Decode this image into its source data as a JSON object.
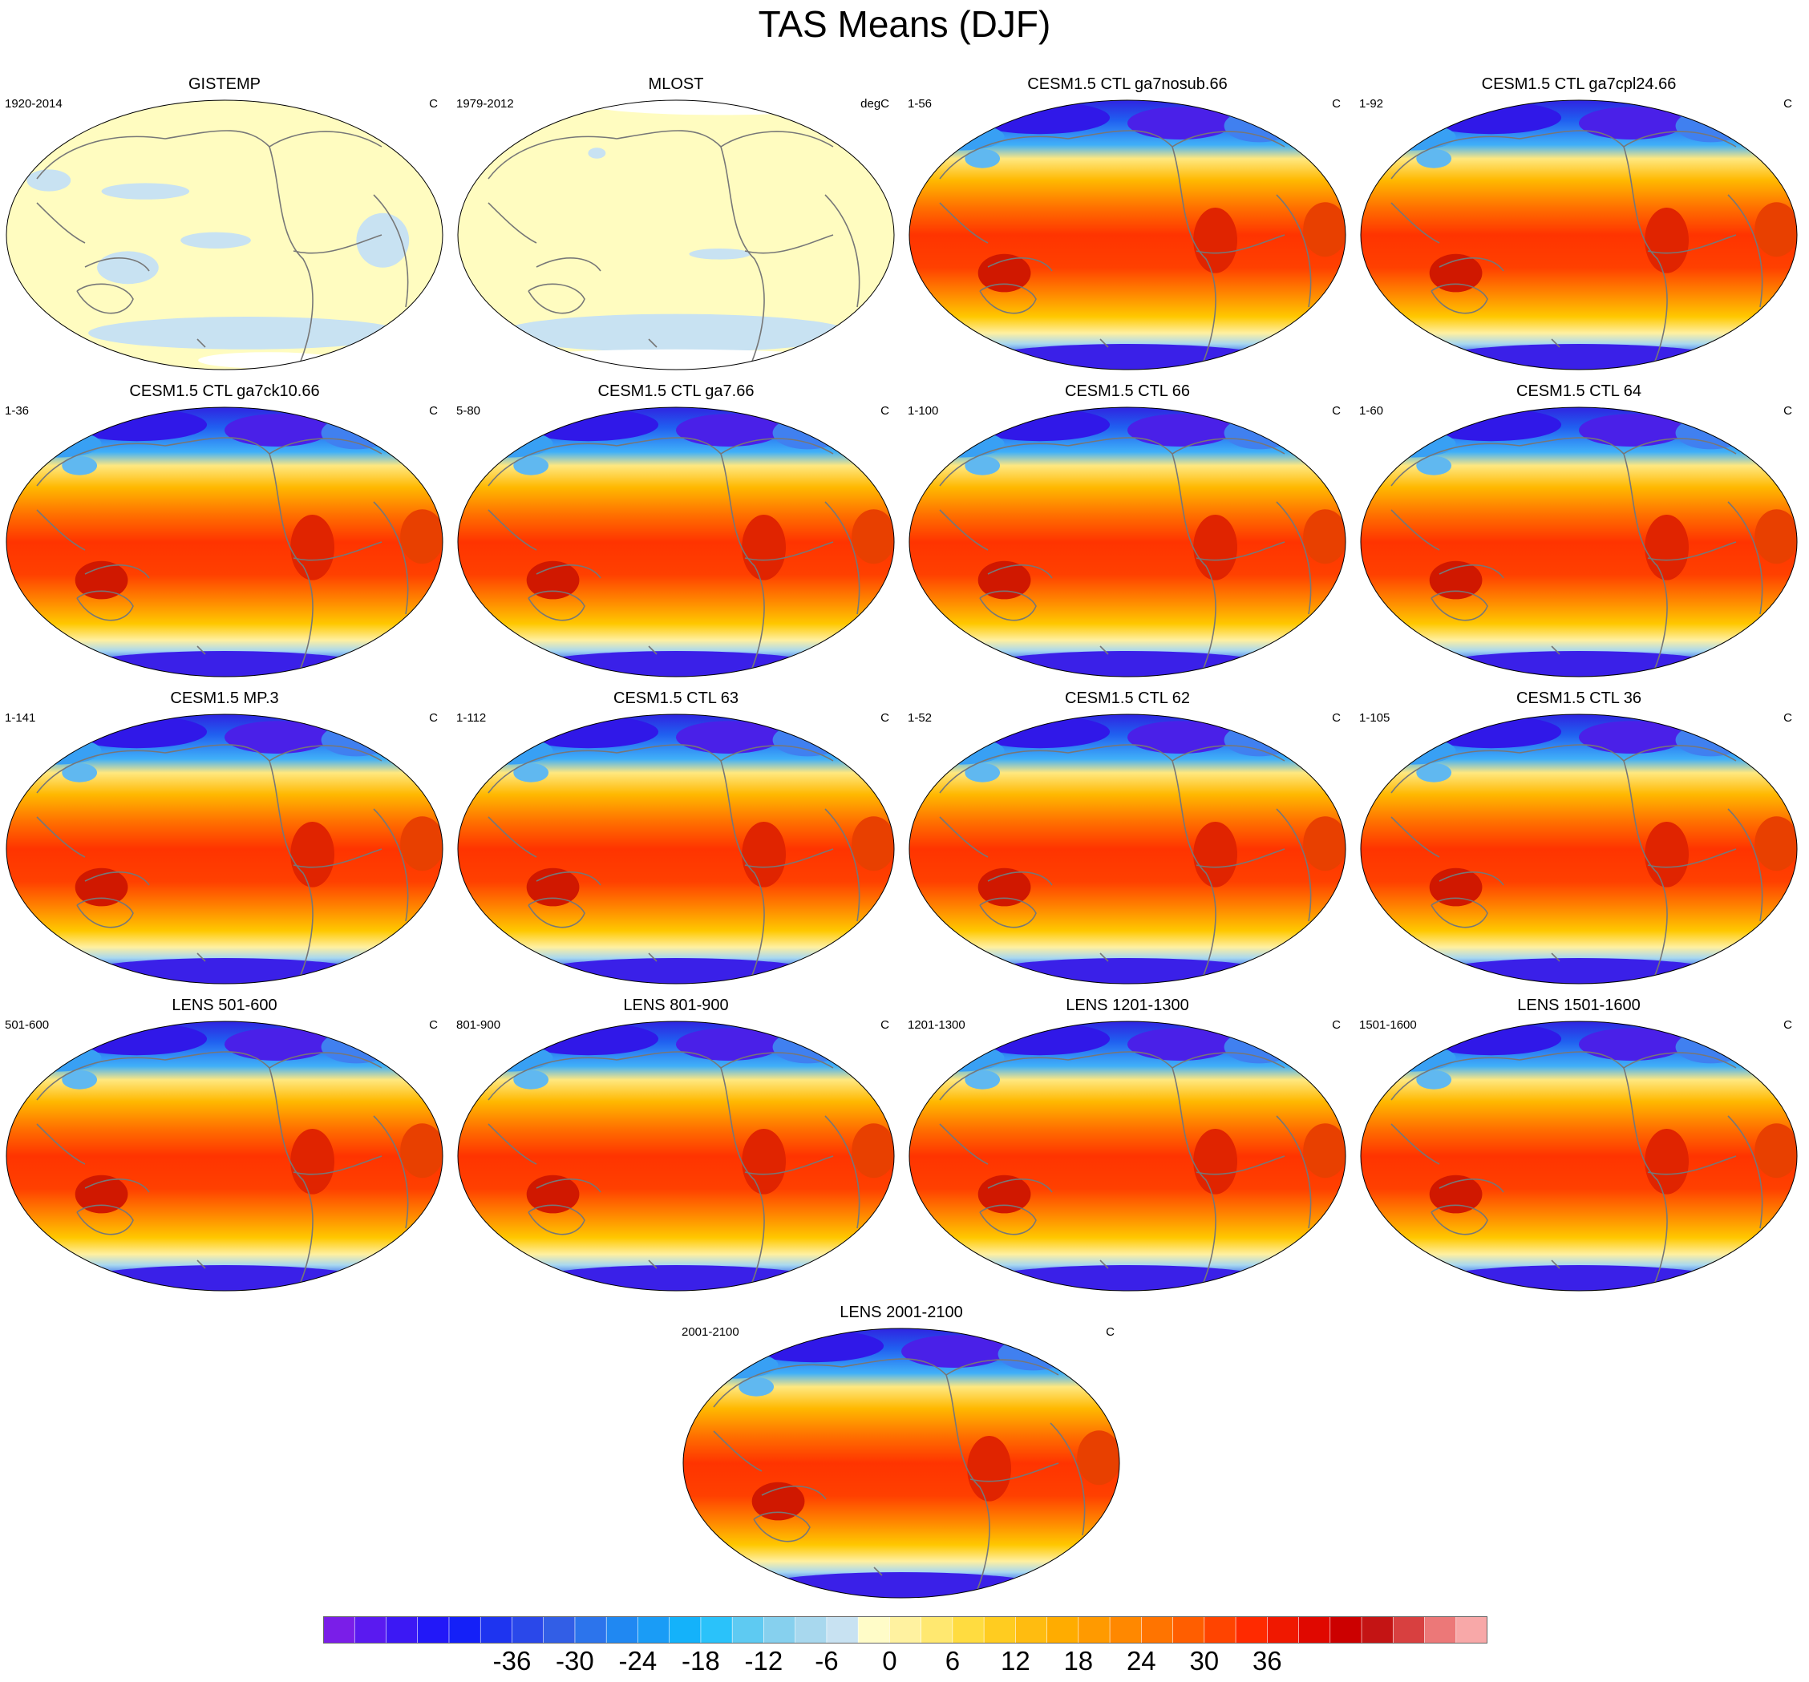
{
  "title": "TAS Means (DJF)",
  "panels": [
    {
      "title": "GISTEMP",
      "left": "1920-2014",
      "right": "C",
      "style": "obs1"
    },
    {
      "title": "MLOST",
      "left": "1979-2012",
      "right": "degC",
      "style": "obs2"
    },
    {
      "title": "CESM1.5 CTL ga7nosub.66",
      "left": "1-56",
      "right": "C",
      "style": "model"
    },
    {
      "title": "CESM1.5 CTL ga7cpl24.66",
      "left": "1-92",
      "right": "C",
      "style": "model"
    },
    {
      "title": "CESM1.5 CTL ga7ck10.66",
      "left": "1-36",
      "right": "C",
      "style": "model"
    },
    {
      "title": "CESM1.5 CTL ga7.66",
      "left": "5-80",
      "right": "C",
      "style": "model"
    },
    {
      "title": "CESM1.5 CTL 66",
      "left": "1-100",
      "right": "C",
      "style": "model"
    },
    {
      "title": "CESM1.5 CTL 64",
      "left": "1-60",
      "right": "C",
      "style": "model"
    },
    {
      "title": "CESM1.5 MP.3",
      "left": "1-141",
      "right": "C",
      "style": "model"
    },
    {
      "title": "CESM1.5 CTL 63",
      "left": "1-112",
      "right": "C",
      "style": "model"
    },
    {
      "title": "CESM1.5 CTL 62",
      "left": "1-52",
      "right": "C",
      "style": "model"
    },
    {
      "title": "CESM1.5 CTL 36",
      "left": "1-105",
      "right": "C",
      "style": "model"
    },
    {
      "title": "LENS 501-600",
      "left": "501-600",
      "right": "C",
      "style": "model"
    },
    {
      "title": "LENS 801-900",
      "left": "801-900",
      "right": "C",
      "style": "model"
    },
    {
      "title": "LENS 1201-1300",
      "left": "1201-1300",
      "right": "C",
      "style": "model"
    },
    {
      "title": "LENS 1501-1600",
      "left": "1501-1600",
      "right": "C",
      "style": "model"
    },
    {
      "title": "LENS 2001-2100",
      "left": "2001-2100",
      "right": "C",
      "style": "model"
    }
  ],
  "colorbar": {
    "labels": [
      "-36",
      "-30",
      "-24",
      "-18",
      "-12",
      "-6",
      "0",
      "6",
      "12",
      "18",
      "24",
      "30",
      "36"
    ],
    "colors": [
      "#7a1ee8",
      "#5a1af0",
      "#3c18f4",
      "#2218f8",
      "#1420f8",
      "#1e34f0",
      "#2a48ea",
      "#325ee6",
      "#2c74ec",
      "#2088f2",
      "#1a9cf6",
      "#14b2fa",
      "#2ac2fa",
      "#5ecaf2",
      "#86d0ee",
      "#a8d8ee",
      "#c8e2f2",
      "#fffcc8",
      "#fff2a0",
      "#ffe870",
      "#ffdc40",
      "#ffcc20",
      "#ffbc10",
      "#ffac00",
      "#ff9a00",
      "#ff8800",
      "#ff7400",
      "#ff5e00",
      "#ff4400",
      "#ff2a00",
      "#f01800",
      "#e00800",
      "#cc0000",
      "#c41414",
      "#d84040",
      "#ec7878",
      "#f8a8a8"
    ]
  }
}
